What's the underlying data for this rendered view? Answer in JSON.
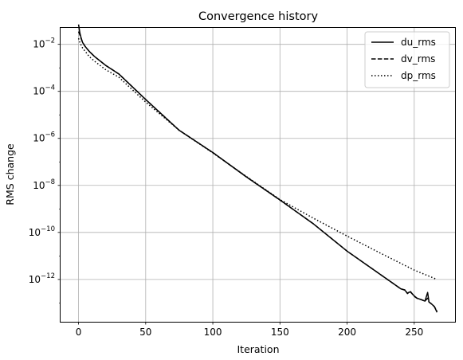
{
  "chart_data": {
    "type": "line",
    "title": "Convergence history",
    "xlabel": "Iteration",
    "ylabel": "RMS change",
    "xlim": [
      -13.4,
      280.4
    ],
    "ylim_log10": [
      -13.8,
      -1.3
    ],
    "yscale": "log",
    "grid": true,
    "legend_position": "top-right",
    "x_ticks": [
      0,
      50,
      100,
      150,
      200,
      250
    ],
    "y_ticks": [
      {
        "exp": -12,
        "base": "10",
        "power": "−12"
      },
      {
        "exp": -10,
        "base": "10",
        "power": "−10"
      },
      {
        "exp": -8,
        "base": "10",
        "power": "−8"
      },
      {
        "exp": -6,
        "base": "10",
        "power": "−6"
      },
      {
        "exp": -4,
        "base": "10",
        "power": "−4"
      },
      {
        "exp": -2,
        "base": "10",
        "power": "−2"
      }
    ],
    "series": [
      {
        "name": "du_rms",
        "style": "solid",
        "points": [
          [
            0,
            0.07
          ],
          [
            1,
            0.03
          ],
          [
            2,
            0.018
          ],
          [
            3,
            0.012
          ],
          [
            5,
            0.008
          ],
          [
            8,
            0.005
          ],
          [
            12,
            0.003
          ],
          [
            20,
            0.0013
          ],
          [
            30,
            0.00055
          ],
          [
            50,
            4.5e-05
          ],
          [
            75,
            2.2e-06
          ],
          [
            100,
            2.5e-07
          ],
          [
            125,
            2.3e-08
          ],
          [
            150,
            2.4e-09
          ],
          [
            175,
            2.3e-10
          ],
          [
            200,
            1.6e-11
          ],
          [
            225,
            1.6e-12
          ],
          [
            240,
            4e-13
          ],
          [
            243,
            3.5e-13
          ],
          [
            245,
            2.6e-13
          ],
          [
            247,
            3e-13
          ],
          [
            250,
            2e-13
          ],
          [
            252,
            1.6e-13
          ],
          [
            255,
            1.4e-13
          ],
          [
            258,
            1.2e-13
          ],
          [
            260,
            2.8e-13
          ],
          [
            261,
            1.1e-13
          ],
          [
            263,
            9e-14
          ],
          [
            265,
            7e-14
          ],
          [
            267,
            4e-14
          ]
        ]
      },
      {
        "name": "dv_rms",
        "style": "dashed",
        "points": [
          [
            0,
            0.035
          ],
          [
            1,
            0.025
          ],
          [
            2,
            0.017
          ],
          [
            3,
            0.012
          ],
          [
            5,
            0.008
          ],
          [
            8,
            0.005
          ],
          [
            12,
            0.003
          ],
          [
            20,
            0.0013
          ],
          [
            30,
            0.00055
          ],
          [
            50,
            4.5e-05
          ],
          [
            75,
            2.2e-06
          ],
          [
            100,
            2.5e-07
          ],
          [
            125,
            2.3e-08
          ],
          [
            150,
            2.4e-09
          ],
          [
            175,
            2.3e-10
          ],
          [
            200,
            1.6e-11
          ],
          [
            225,
            1.6e-12
          ],
          [
            240,
            4e-13
          ],
          [
            243,
            3.6e-13
          ],
          [
            245,
            2.5e-13
          ],
          [
            247,
            3.2e-13
          ],
          [
            250,
            1.9e-13
          ],
          [
            252,
            1.6e-13
          ],
          [
            255,
            1.4e-13
          ],
          [
            258,
            1.2e-13
          ],
          [
            260,
            1.6e-13
          ],
          [
            261,
            1.1e-13
          ],
          [
            263,
            9e-14
          ],
          [
            265,
            7e-14
          ],
          [
            267,
            4.5e-14
          ]
        ]
      },
      {
        "name": "dp_rms",
        "style": "dotted",
        "points": [
          [
            0,
            0.018
          ],
          [
            1,
            0.012
          ],
          [
            2,
            0.009
          ],
          [
            3,
            0.007
          ],
          [
            5,
            0.005
          ],
          [
            8,
            0.003
          ],
          [
            12,
            0.0019
          ],
          [
            20,
            0.00085
          ],
          [
            30,
            0.0004
          ],
          [
            50,
            3.5e-05
          ],
          [
            75,
            2.2e-06
          ],
          [
            100,
            2.4e-07
          ],
          [
            125,
            2.4e-08
          ],
          [
            150,
            2.5e-09
          ],
          [
            175,
            4e-10
          ],
          [
            200,
            7e-11
          ],
          [
            225,
            1.3e-11
          ],
          [
            250,
            2.5e-12
          ],
          [
            267,
            1e-12
          ]
        ]
      }
    ]
  }
}
